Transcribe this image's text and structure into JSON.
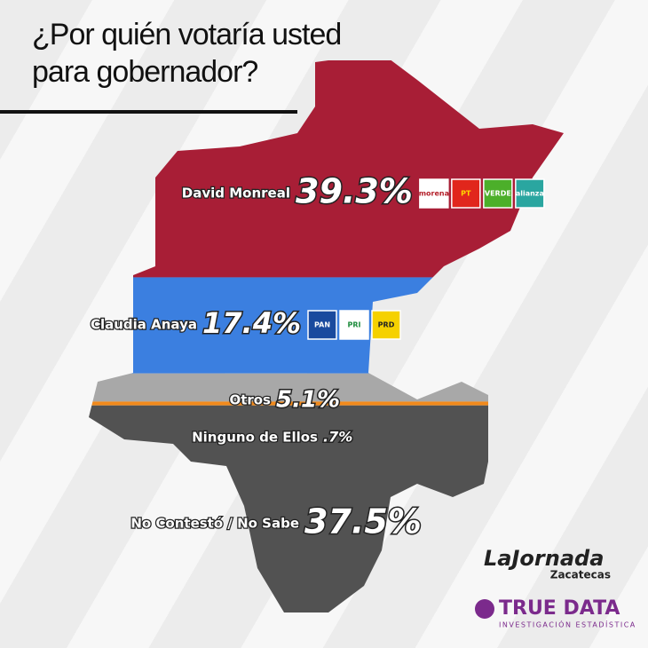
{
  "chart_data": {
    "type": "stacked-map",
    "title": "¿Por quién votaría usted para gobernador?",
    "categories": [
      "David Monreal",
      "Claudia Anaya",
      "Otros",
      "Ninguno de Ellos",
      "No Contestó / No Sabe"
    ],
    "values": [
      39.3,
      17.4,
      5.1,
      0.7,
      37.5
    ],
    "value_labels": [
      "39.3%",
      "17.4%",
      "5.1%",
      ".7%",
      "37.5%"
    ],
    "colors": [
      "#a81e36",
      "#3b7fe0",
      "#a8a8a8",
      "#f28a1c",
      "#525252"
    ],
    "logos": [
      [
        "morena",
        "PT",
        "VERDE",
        "alianza"
      ],
      [
        "PAN",
        "PRI",
        "PRD"
      ],
      [],
      [],
      []
    ]
  },
  "footer": {
    "newspaper": "LaJornada",
    "edition": "Zacatecas",
    "pollster": "TRUE DATA",
    "pollster_tagline": "INVESTIGACIÓN ESTADÍSTICA"
  }
}
